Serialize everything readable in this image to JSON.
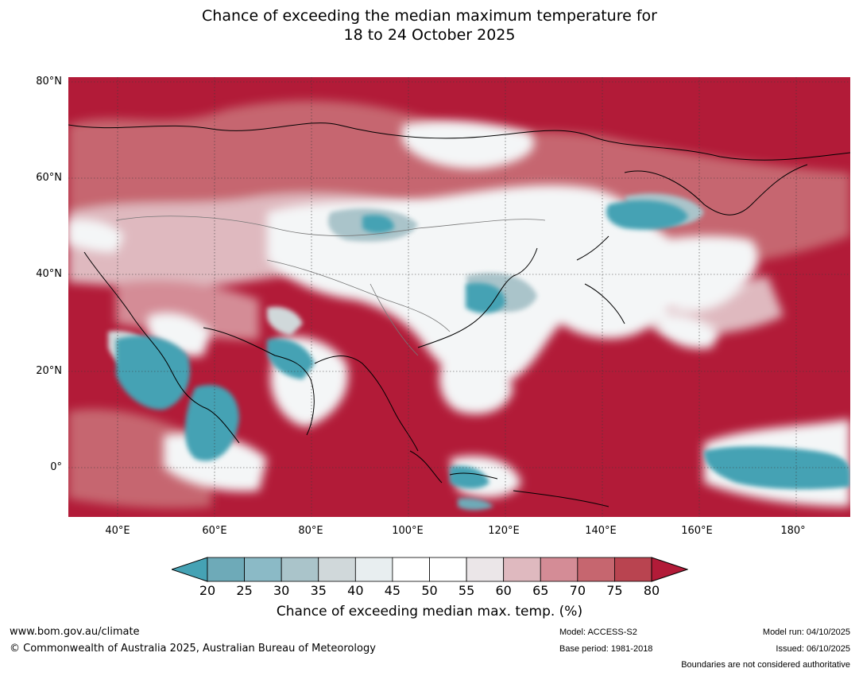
{
  "title_line1": "Chance of exceeding the median maximum temperature for",
  "title_line2": "18 to 24 October 2025",
  "map": {
    "lat_labels": [
      "80°N",
      "60°N",
      "40°N",
      "20°N",
      "0°"
    ],
    "lon_labels": [
      "40°E",
      "60°E",
      "80°E",
      "100°E",
      "120°E",
      "140°E",
      "160°E",
      "180°"
    ],
    "lon_range": [
      30,
      191
    ],
    "lat_range": [
      -10,
      81
    ]
  },
  "colorbar": {
    "ticks": [
      "20",
      "25",
      "30",
      "35",
      "40",
      "45",
      "50",
      "55",
      "60",
      "65",
      "70",
      "75",
      "80"
    ],
    "colors": [
      "#45a2b4",
      "#6eaab8",
      "#8bbac6",
      "#aac4ca",
      "#d0d8da",
      "#e8eef0",
      "#ffffff",
      "#ffffff",
      "#ebe6e8",
      "#dfb9bf",
      "#d48c96",
      "#c6666f",
      "#b94450",
      "#b21b38"
    ],
    "label": "Chance of exceeding median max. temp. (%)"
  },
  "colors": {
    "hot": "#b21b38",
    "warm": "#c6666f",
    "mild": "#dfb9bf",
    "neutral": "#f4f6f7",
    "cool_light": "#aac4ca",
    "cool": "#45a2b4"
  },
  "footer": {
    "website": "www.bom.gov.au/climate",
    "copyright": "© Commonwealth of Australia 2025, Australian Bureau of Meteorology",
    "model": "Model: ACCESS-S2",
    "base_period": "Base period: 1981-2018",
    "model_run": "Model run: 04/10/2025",
    "issued": "Issued: 06/10/2025",
    "disclaimer": "Boundaries are not considered authoritative"
  }
}
